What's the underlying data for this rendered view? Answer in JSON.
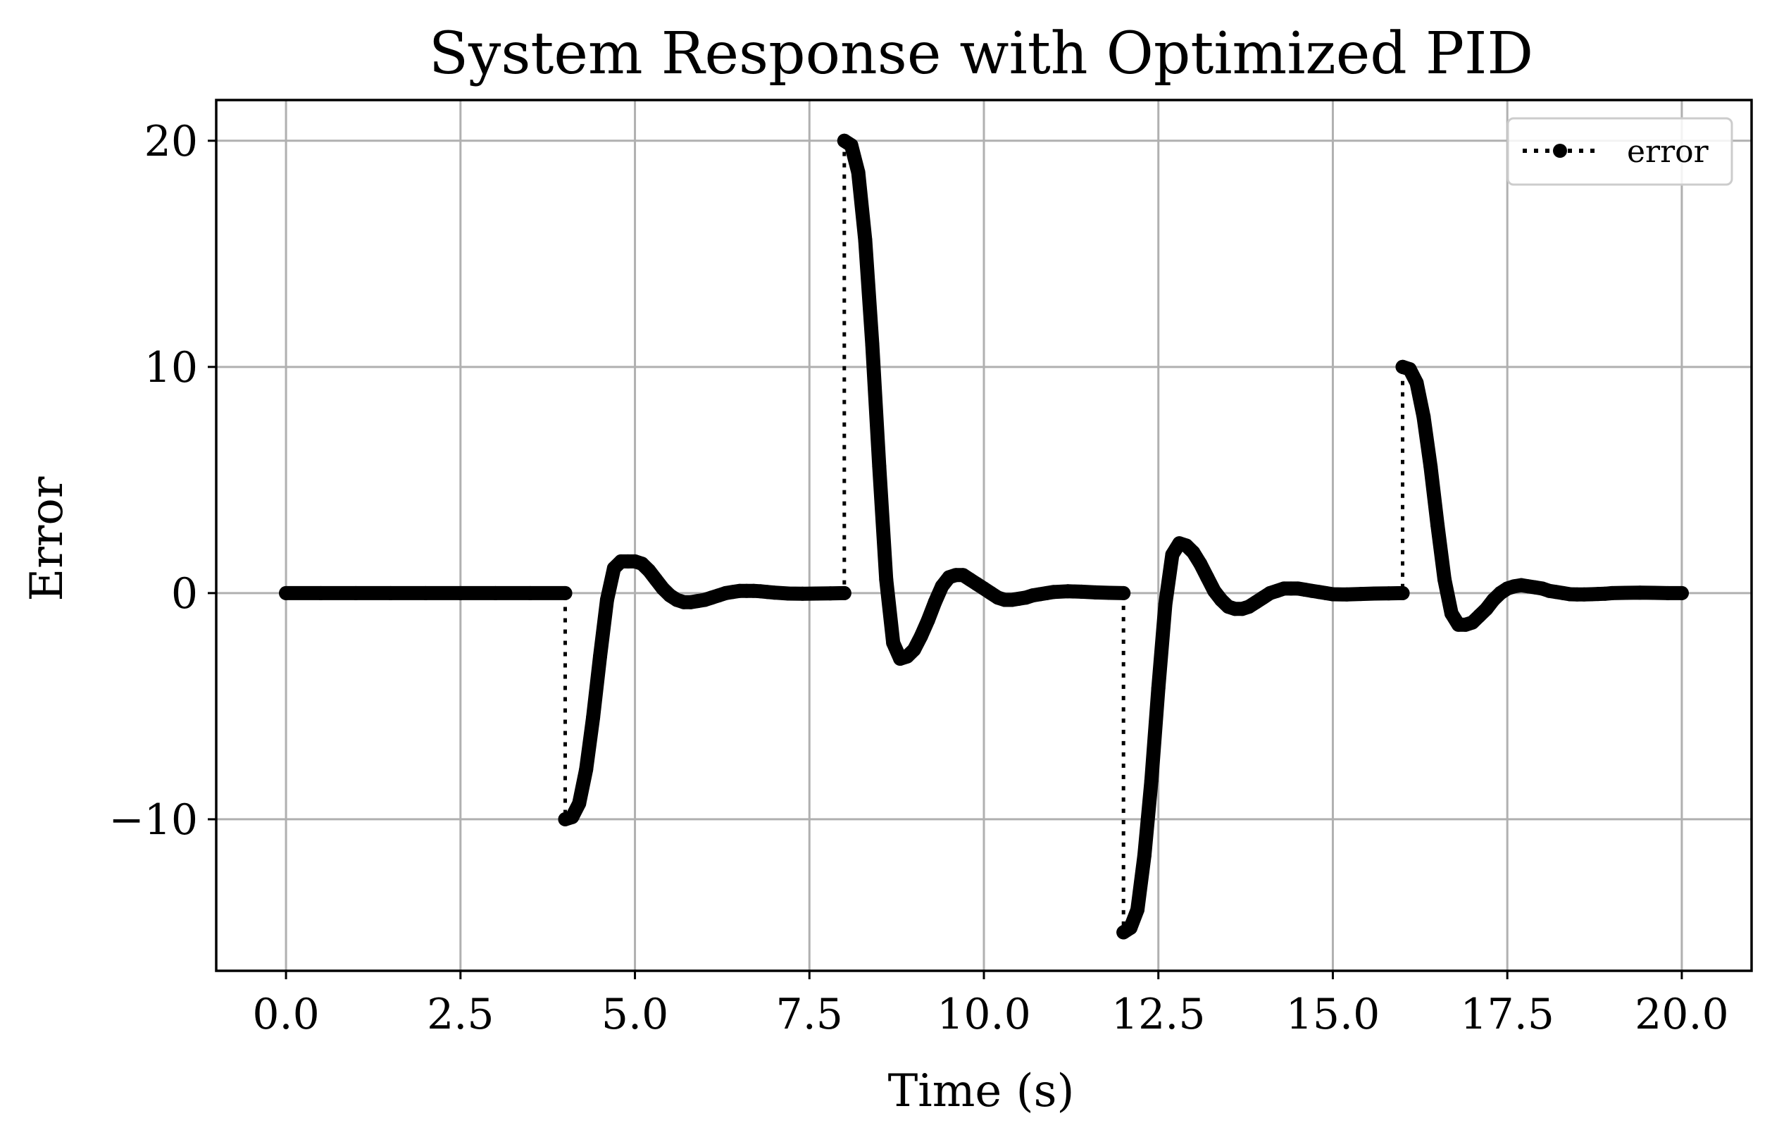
{
  "chart_data": {
    "type": "line",
    "title": "System Response with Optimized PID",
    "xlabel": "Time (s)",
    "ylabel": "Error",
    "xlim": [
      -1.0,
      21.0
    ],
    "ylim": [
      -16.7,
      21.8
    ],
    "xticks": [
      0.0,
      2.5,
      5.0,
      7.5,
      10.0,
      12.5,
      15.0,
      17.5,
      20.0
    ],
    "xtick_labels": [
      "0.0",
      "2.5",
      "5.0",
      "7.5",
      "10.0",
      "12.5",
      "15.0",
      "17.5",
      "20.0"
    ],
    "yticks": [
      -10,
      0,
      10,
      20
    ],
    "ytick_labels": [
      "−10",
      "0",
      "10",
      "20"
    ],
    "grid": true,
    "legend_position": "top-right",
    "series": [
      {
        "name": "error",
        "color": "#000000",
        "line_style": "dotted",
        "marker": "circle",
        "x": [
          0.0,
          0.5,
          1.0,
          1.5,
          2.0,
          2.5,
          3.0,
          3.5,
          4.0,
          4.0,
          4.1,
          4.2,
          4.3,
          4.4,
          4.5,
          4.6,
          4.7,
          4.8,
          4.9,
          5.0,
          5.1,
          5.2,
          5.3,
          5.4,
          5.5,
          5.6,
          5.7,
          5.8,
          5.9,
          6.0,
          6.1,
          6.2,
          6.3,
          6.4,
          6.5,
          6.6,
          6.7,
          6.8,
          6.9,
          7.0,
          7.2,
          7.4,
          7.6,
          7.8,
          8.0,
          8.0,
          8.1,
          8.2,
          8.3,
          8.4,
          8.5,
          8.6,
          8.7,
          8.8,
          8.9,
          9.0,
          9.1,
          9.2,
          9.3,
          9.4,
          9.5,
          9.6,
          9.7,
          9.8,
          9.9,
          10.0,
          10.1,
          10.2,
          10.3,
          10.4,
          10.5,
          10.6,
          10.7,
          10.8,
          10.9,
          11.0,
          11.2,
          11.4,
          11.6,
          11.8,
          12.0,
          12.0,
          12.1,
          12.2,
          12.3,
          12.4,
          12.5,
          12.6,
          12.7,
          12.8,
          12.9,
          13.0,
          13.1,
          13.2,
          13.3,
          13.4,
          13.5,
          13.6,
          13.7,
          13.8,
          13.9,
          14.0,
          14.1,
          14.2,
          14.3,
          14.4,
          14.5,
          14.6,
          14.7,
          14.8,
          14.9,
          15.0,
          15.2,
          15.4,
          15.6,
          15.8,
          16.0,
          16.0,
          16.1,
          16.2,
          16.3,
          16.4,
          16.5,
          16.6,
          16.7,
          16.8,
          16.9,
          17.0,
          17.1,
          17.2,
          17.3,
          17.4,
          17.5,
          17.6,
          17.7,
          17.8,
          17.9,
          18.0,
          18.1,
          18.2,
          18.3,
          18.4,
          18.5,
          18.6,
          18.7,
          18.8,
          18.9,
          19.0,
          19.2,
          19.4,
          19.6,
          19.8,
          20.0
        ],
        "y": [
          0,
          0,
          0,
          0,
          0,
          0,
          0,
          0,
          0,
          -10.0,
          -9.9,
          -9.3,
          -7.8,
          -5.5,
          -2.8,
          -0.3,
          1.1,
          1.4,
          1.4,
          1.4,
          1.3,
          1.0,
          0.6,
          0.2,
          -0.1,
          -0.3,
          -0.4,
          -0.4,
          -0.35,
          -0.3,
          -0.2,
          -0.1,
          0.0,
          0.05,
          0.1,
          0.1,
          0.1,
          0.08,
          0.05,
          0.02,
          -0.02,
          -0.03,
          -0.02,
          -0.01,
          0.0,
          20.0,
          19.8,
          18.6,
          15.6,
          11.0,
          5.6,
          0.6,
          -2.2,
          -2.9,
          -2.8,
          -2.5,
          -1.9,
          -1.2,
          -0.4,
          0.3,
          0.7,
          0.8,
          0.8,
          0.6,
          0.4,
          0.2,
          -0.0,
          -0.2,
          -0.3,
          -0.3,
          -0.25,
          -0.2,
          -0.1,
          -0.05,
          0.0,
          0.05,
          0.08,
          0.06,
          0.03,
          0.01,
          0.0,
          -15.0,
          -14.8,
          -14.0,
          -11.6,
          -8.3,
          -4.2,
          -0.5,
          1.7,
          2.2,
          2.1,
          1.8,
          1.3,
          0.7,
          0.1,
          -0.3,
          -0.6,
          -0.7,
          -0.7,
          -0.6,
          -0.4,
          -0.2,
          0.0,
          0.1,
          0.2,
          0.2,
          0.2,
          0.15,
          0.1,
          0.05,
          0.0,
          -0.05,
          -0.06,
          -0.04,
          -0.02,
          -0.01,
          0.0,
          10.0,
          9.9,
          9.3,
          7.8,
          5.6,
          3.0,
          0.6,
          -0.9,
          -1.4,
          -1.4,
          -1.3,
          -1.0,
          -0.7,
          -0.3,
          0.0,
          0.2,
          0.3,
          0.35,
          0.3,
          0.25,
          0.2,
          0.1,
          0.05,
          0.0,
          -0.05,
          -0.06,
          -0.06,
          -0.05,
          -0.04,
          -0.03,
          0.0,
          0.01,
          0.02,
          0.01,
          0.0,
          0.0
        ]
      }
    ]
  }
}
